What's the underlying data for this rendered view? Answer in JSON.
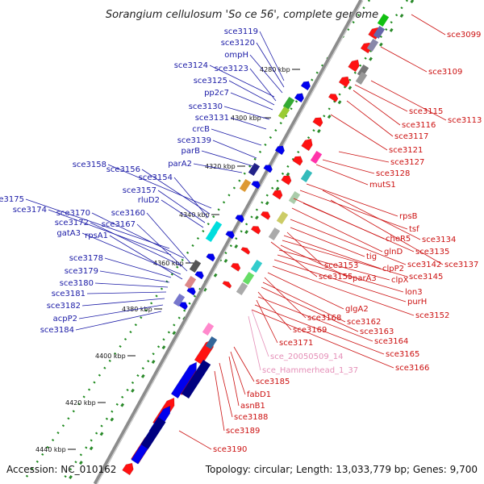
{
  "title": "Sorangium cellulosum 'So ce 56', complete genome",
  "footer": {
    "accession": "Accession: NC_010162",
    "summary": "Topology: circular; Length: 13,033,779 bp; Genes: 9,700"
  },
  "colors": {
    "left_labels": "#1a1aa6",
    "right_labels": "#cc1111",
    "rna_labels": "#e58fb8",
    "backbone": "#8c8c8c",
    "forward_genes": "#ff0000",
    "reverse_genes": "#0000ff",
    "gc_marks": "#1f8a1f"
  },
  "ticks": [
    "4280 kbp",
    "4300 kbp",
    "4320 kbp",
    "4340 kbp",
    "4360 kbp",
    "4380 kbp",
    "4400 kbp",
    "4420 kbp",
    "4440 kbp"
  ],
  "left_labels": [
    "sce3119",
    "sce3120",
    "ompH",
    "sce3124",
    "sce3123",
    "sce3125",
    "pp2c7",
    "sce3130",
    "sce3131",
    "crcB",
    "sce3139",
    "parB",
    "parA2",
    "sce3158",
    "sce3156",
    "sce3154",
    "sce3157",
    "rluD2",
    "sce3175",
    "sce3174",
    "sce3170",
    "sce3160",
    "sce3172",
    "sce3167",
    "gatA3",
    "rpsA1",
    "sce3178",
    "sce3179",
    "sce3180",
    "sce3181",
    "sce3182",
    "acpP2",
    "sce3184"
  ],
  "right_labels": [
    "sce3099",
    "sce3109",
    "sce3115",
    "sce3113",
    "sce3116",
    "sce3117",
    "sce3121",
    "sce3127",
    "sce3128",
    "mutS1",
    "rpsB",
    "tsf",
    "cheR5",
    "sce3134",
    "sce3135",
    "glnD",
    "sce3137",
    "sce3142",
    "tig",
    "sce3153",
    "clpP2",
    "sce3145",
    "sce3155",
    "parA3",
    "clpX",
    "lon3",
    "purH",
    "sce3152",
    "glgA2",
    "sce3168",
    "sce3162",
    "sce3163",
    "sce3169",
    "sce3164",
    "sce3171",
    "sce3165",
    "sce3166",
    "sce3185",
    "fabD1",
    "asnB1",
    "sce3188",
    "sce3189",
    "sce3190"
  ],
  "rna_labels": [
    "sce_20050509_14",
    "sce_Hammerhead_1_37"
  ]
}
